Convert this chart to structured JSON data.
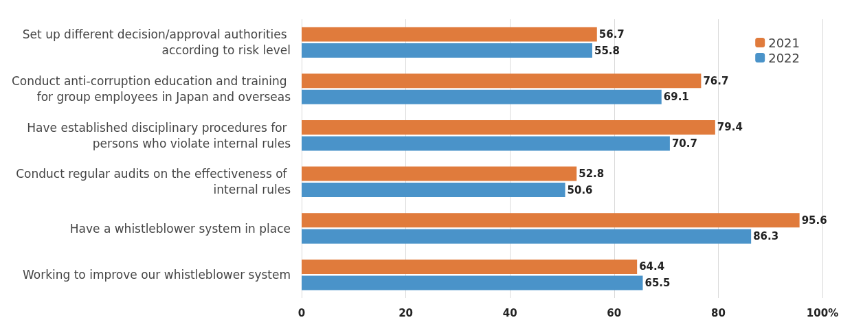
{
  "chart_data": {
    "type": "bar",
    "orientation": "horizontal",
    "categories": [
      "Set up different decision/approval authorities according to risk level",
      "Conduct anti-corruption education and training for group employees in Japan and overseas",
      "Have established disciplinary procedures for persons who violate internal rules",
      "Conduct regular audits on the effectiveness of internal rules",
      "Have a whistleblower system in place",
      "Working to improve our whistleblower system"
    ],
    "series": [
      {
        "name": "2021",
        "color": "#e07b3c",
        "values": [
          56.7,
          76.7,
          79.4,
          52.8,
          95.6,
          64.4
        ]
      },
      {
        "name": "2022",
        "color": "#4a93c9",
        "values": [
          55.8,
          69.1,
          70.7,
          50.6,
          86.3,
          65.5
        ]
      }
    ],
    "xlim": [
      0,
      100
    ],
    "xticks": [
      0,
      20,
      40,
      60,
      80,
      {
        "value": 100,
        "label": "100%"
      }
    ],
    "grid": "x",
    "legend": "top right",
    "data_labels": true
  }
}
